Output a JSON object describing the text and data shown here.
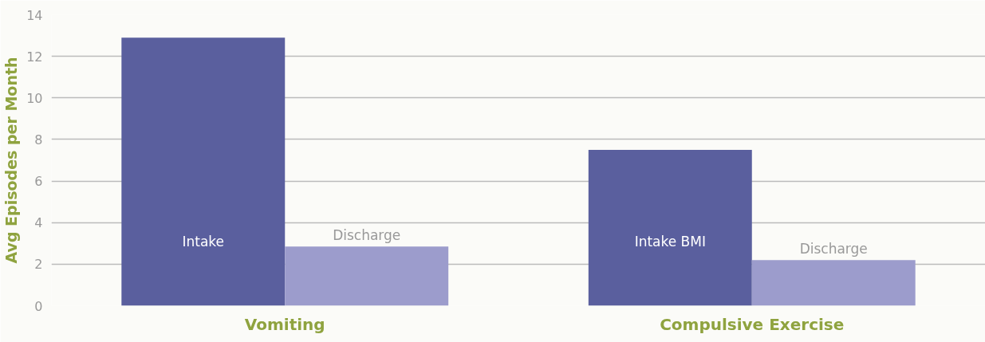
{
  "chart_data": {
    "type": "bar",
    "ylabel": "Avg Episodes per Month",
    "categories": [
      "Vomiting",
      "Compulsive Exercise"
    ],
    "series": [
      {
        "color": "#5a5f9e",
        "values": [
          12.9,
          7.5
        ],
        "value_labels": [
          "Intake",
          "Intake BMI"
        ]
      },
      {
        "color": "#9c9ccc",
        "values": [
          2.85,
          2.2
        ],
        "value_labels": [
          "Discharge",
          "Discharge"
        ]
      }
    ],
    "ylim": [
      0,
      14
    ],
    "yticks": [
      0,
      2,
      4,
      6,
      8,
      10,
      12,
      14
    ],
    "grid": "y"
  }
}
